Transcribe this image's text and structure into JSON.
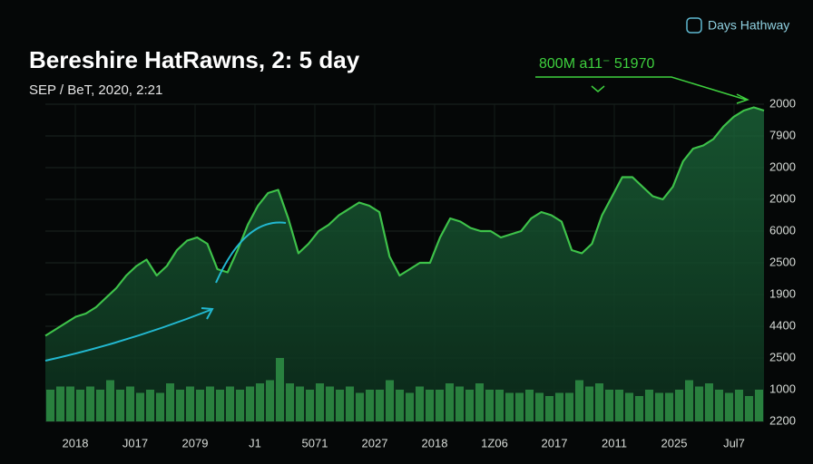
{
  "brand": "Days Hathway",
  "chart_data": {
    "type": "line",
    "title": "Bereshire HatRawns, 2: 5 day",
    "subtitle": "SEP / BeT, 2020, 2:21",
    "annotation": "800M a11⁻ 51970",
    "x_labels": [
      "2018",
      "J017",
      "2079",
      "J1",
      "5071",
      "2027",
      "2018",
      "1Z06",
      "2017",
      "2011",
      "2025",
      "Jul7"
    ],
    "ylim": [
      0,
      10
    ],
    "yticks": [
      {
        "value": 10,
        "label": "2000"
      },
      {
        "value": 9,
        "label": "7900"
      },
      {
        "value": 8,
        "label": "2000"
      },
      {
        "value": 7,
        "label": "2000"
      },
      {
        "value": 6,
        "label": "6000"
      },
      {
        "value": 5,
        "label": "2500"
      },
      {
        "value": 4,
        "label": "1900"
      },
      {
        "value": 3,
        "label": "4400"
      },
      {
        "value": 2,
        "label": "2500"
      },
      {
        "value": 1,
        "label": "1000"
      },
      {
        "value": 0,
        "label": "2200"
      }
    ],
    "grid": true,
    "series": [
      {
        "type": "line",
        "color": "#3ec24a",
        "values": [
          2.7,
          2.9,
          3.1,
          3.3,
          3.4,
          3.6,
          3.9,
          4.2,
          4.6,
          4.9,
          5.1,
          4.6,
          4.9,
          5.4,
          5.7,
          5.8,
          5.6,
          4.8,
          4.7,
          5.4,
          6.2,
          6.8,
          7.2,
          7.3,
          6.4,
          5.3,
          5.6,
          6.0,
          6.2,
          6.5,
          6.7,
          6.9,
          6.8,
          6.6,
          5.2,
          4.6,
          4.8,
          5.0,
          5.0,
          5.8,
          6.4,
          6.3,
          6.1,
          6.0,
          6.0,
          5.8,
          5.9,
          6.0,
          6.4,
          6.6,
          6.5,
          6.3,
          5.4,
          5.3,
          5.6,
          6.5,
          7.1,
          7.7,
          7.7,
          7.4,
          7.1,
          7.0,
          7.4,
          8.2,
          8.6,
          8.7,
          8.9,
          9.3,
          9.6,
          9.8,
          9.9,
          9.8
        ]
      },
      {
        "type": "bar",
        "color": "#2f8f45",
        "values": [
          1.0,
          1.1,
          1.1,
          1.0,
          1.1,
          1.0,
          1.3,
          1.0,
          1.1,
          0.9,
          1.0,
          0.9,
          1.2,
          1.0,
          1.1,
          1.0,
          1.1,
          1.0,
          1.1,
          1.0,
          1.1,
          1.2,
          1.3,
          2.0,
          1.2,
          1.1,
          1.0,
          1.2,
          1.1,
          1.0,
          1.1,
          0.9,
          1.0,
          1.0,
          1.3,
          1.0,
          0.9,
          1.1,
          1.0,
          1.0,
          1.2,
          1.1,
          1.0,
          1.2,
          1.0,
          1.0,
          0.9,
          0.9,
          1.0,
          0.9,
          0.8,
          0.9,
          0.9,
          1.3,
          1.1,
          1.2,
          1.0,
          1.0,
          0.9,
          0.8,
          1.0,
          0.9,
          0.9,
          1.0,
          1.3,
          1.1,
          1.2,
          1.0,
          0.9,
          1.0,
          0.8,
          1.0
        ]
      }
    ]
  }
}
